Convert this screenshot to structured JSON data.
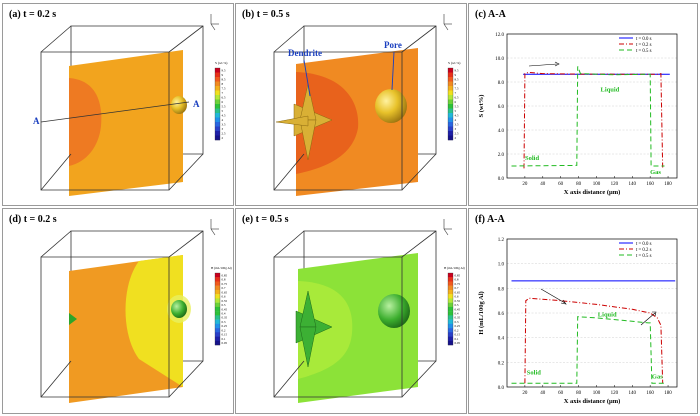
{
  "panels": [
    {
      "label": "(a) t = 0.2 s",
      "colorbar": "S (wt.%)",
      "section_label": "A",
      "ticks": [
        "9.5",
        "9",
        "8.5",
        "8",
        "7.5",
        "7",
        "6.5",
        "6",
        "5.5",
        "5",
        "4.5",
        "4",
        "3.5",
        "3",
        "2.5",
        "2"
      ]
    },
    {
      "label": "(b) t = 0.5 s",
      "colorbar": "S (wt.%)",
      "annotations": [
        "Dendrite",
        "Pore"
      ],
      "ticks": [
        "9.5",
        "9",
        "8.5",
        "8",
        "7.5",
        "7",
        "6.5",
        "6",
        "5.5",
        "5",
        "4.5",
        "4",
        "3.5",
        "3",
        "2.5",
        "2"
      ]
    },
    {
      "label": "(c) A-A"
    },
    {
      "label": "(d) t = 0.2 s",
      "colorbar": "H (mL/100g Al)",
      "ticks": [
        "0.85",
        "0.8",
        "0.75",
        "0.7",
        "0.65",
        "0.6",
        "0.55",
        "0.5",
        "0.45",
        "0.4",
        "0.35",
        "0.3",
        "0.25",
        "0.2",
        "0.15",
        "0.1",
        "0.05"
      ]
    },
    {
      "label": "(e) t = 0.5 s",
      "colorbar": "H (mL/100g Al)",
      "ticks": [
        "0.85",
        "0.8",
        "0.75",
        "0.7",
        "0.65",
        "0.6",
        "0.55",
        "0.5",
        "0.45",
        "0.4",
        "0.35",
        "0.3",
        "0.25",
        "0.2",
        "0.15",
        "0.1",
        "0.05"
      ]
    },
    {
      "label": "(f) A-A"
    }
  ],
  "chart_data": [
    {
      "type": "line",
      "xlabel": "X axis distance (μm)",
      "ylabel": "S (wt%)",
      "xlim": [
        0,
        190
      ],
      "ylim": [
        0,
        12
      ],
      "xticks": [
        20,
        40,
        60,
        80,
        100,
        120,
        140,
        160,
        180
      ],
      "yticks": [
        0,
        2,
        4,
        6,
        8,
        10,
        12
      ],
      "yticklabels": [
        "0.0",
        "2.0",
        "4.0",
        "6.0",
        "8.0",
        "10.0",
        "12.0"
      ],
      "legend": "top-right",
      "series": [
        {
          "name": "t = 0.0 s",
          "color": "#0000ff",
          "dash": "",
          "points": [
            [
              18,
              8.65
            ],
            [
              182,
              8.65
            ]
          ]
        },
        {
          "name": "t = 0.2 s",
          "color": "#cc0000",
          "dash": "5,2,1,2",
          "points": [
            [
              19,
              0.8
            ],
            [
              20,
              8.7
            ],
            [
              24,
              8.8
            ],
            [
              40,
              8.7
            ],
            [
              80,
              8.66
            ],
            [
              120,
              8.65
            ],
            [
              168,
              8.64
            ],
            [
              172,
              8.7
            ],
            [
              174,
              0.8
            ]
          ]
        },
        {
          "name": "t = 0.5 s",
          "color": "#22bb22",
          "dash": "5,3",
          "points": [
            [
              5,
              1.0
            ],
            [
              78,
              1.05
            ],
            [
              79,
              9.3
            ],
            [
              82,
              8.7
            ],
            [
              120,
              8.6
            ],
            [
              160,
              8.65
            ],
            [
              161,
              1.0
            ],
            [
              176,
              1.0
            ]
          ]
        }
      ],
      "annotations": [
        {
          "text": "Liquid",
          "x": 115,
          "y": 7.2,
          "color": "#22bb22"
        },
        {
          "text": "Solid",
          "x": 28,
          "y": 1.5,
          "color": "#22bb22"
        },
        {
          "text": "Gas",
          "x": 166,
          "y": 0.35,
          "color": "#22bb22"
        }
      ]
    },
    {
      "type": "line",
      "xlabel": "X axis distance (μm)",
      "ylabel": "H (mL/100g Al)",
      "xlim": [
        0,
        190
      ],
      "ylim": [
        0,
        1.2
      ],
      "xticks": [
        20,
        40,
        60,
        80,
        100,
        120,
        140,
        160,
        180
      ],
      "yticks": [
        0,
        0.2,
        0.4,
        0.6,
        0.8,
        1.0,
        1.2
      ],
      "yticklabels": [
        "0.0",
        "0.2",
        "0.4",
        "0.6",
        "0.8",
        "1.0",
        "1.2"
      ],
      "legend": "top-right",
      "series": [
        {
          "name": "t = 0.0 s",
          "color": "#0000ff",
          "dash": "",
          "points": [
            [
              5,
              0.86
            ],
            [
              188,
              0.86
            ]
          ]
        },
        {
          "name": "t = 0.2 s",
          "color": "#cc0000",
          "dash": "5,2,1,2",
          "points": [
            [
              20,
              0.03
            ],
            [
              21,
              0.7
            ],
            [
              25,
              0.72
            ],
            [
              60,
              0.7
            ],
            [
              100,
              0.67
            ],
            [
              140,
              0.63
            ],
            [
              160,
              0.6
            ],
            [
              168,
              0.56
            ],
            [
              172,
              0.5
            ],
            [
              174,
              0.03
            ]
          ]
        },
        {
          "name": "t = 0.5 s",
          "color": "#22bb22",
          "dash": "5,3",
          "points": [
            [
              5,
              0.03
            ],
            [
              78,
              0.03
            ],
            [
              79,
              0.57
            ],
            [
              100,
              0.56
            ],
            [
              130,
              0.54
            ],
            [
              158,
              0.52
            ],
            [
              160,
              0.52
            ],
            [
              162,
              0.03
            ],
            [
              176,
              0.03
            ]
          ]
        }
      ],
      "annotations": [
        {
          "text": "Liquid",
          "x": 112,
          "y": 0.57,
          "color": "#22bb22"
        },
        {
          "text": "Solid",
          "x": 30,
          "y": 0.1,
          "color": "#22bb22"
        },
        {
          "text": "Gas",
          "x": 168,
          "y": 0.07,
          "color": "#22bb22"
        }
      ]
    }
  ]
}
